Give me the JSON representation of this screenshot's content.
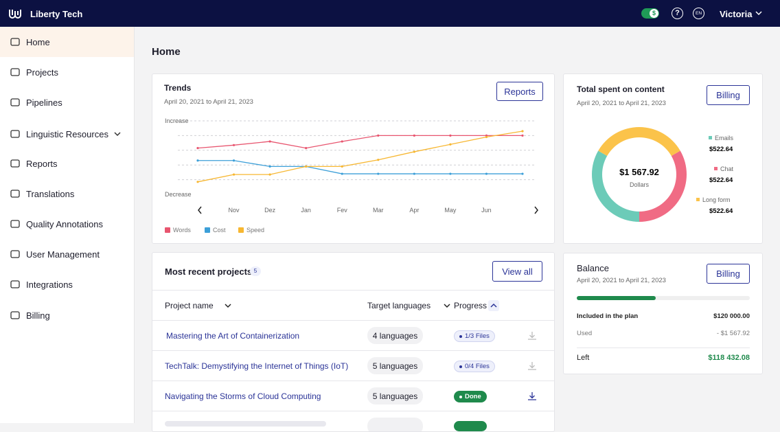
{
  "header": {
    "brand": "Liberty Tech",
    "toggle_icon": "$",
    "language": "EN",
    "user": "Victoria"
  },
  "sidebar": {
    "items": [
      "Home",
      "Projects",
      "Pipelines",
      "Linguistic Resources",
      "Reports",
      "Translations",
      "Quality Annotations",
      "User Management",
      "Integrations",
      "Billing"
    ]
  },
  "page_title": "Home",
  "trends": {
    "title": "Trends",
    "subtitle": "April 20, 2021 to April 21, 2023",
    "button": "Reports",
    "chart_data": {
      "type": "line",
      "categories": [
        null,
        "Nov",
        "Dez",
        "Jan",
        "Fev",
        "Mar",
        "Apr",
        "May",
        "Jun",
        null
      ],
      "series": [
        {
          "name": "Words",
          "color": "#e8556f",
          "values": [
            63,
            67,
            72,
            63,
            72,
            80,
            80,
            80,
            80,
            80
          ]
        },
        {
          "name": "Cost",
          "color": "#3c9fd8",
          "values": [
            46,
            46,
            38,
            38,
            28,
            28,
            28,
            28,
            28,
            28
          ]
        },
        {
          "name": "Speed",
          "color": "#f7b731",
          "values": [
            17,
            27,
            27,
            38,
            38,
            47,
            58,
            68,
            78,
            86
          ]
        }
      ],
      "ylim": [
        0,
        100
      ],
      "yticks": [
        {
          "value": 100,
          "label": "Increase"
        },
        {
          "value": 0,
          "label": "Decrease"
        }
      ],
      "ygrid": [
        100,
        80,
        60,
        40,
        20
      ]
    }
  },
  "total_spent": {
    "title": "Total spent on content",
    "subtitle": "April 20, 2021 to April 21, 2023",
    "button": "Billing",
    "chart_data": {
      "type": "donut",
      "center_value": "$1 567.92",
      "center_label": "Dollars",
      "categories": [
        "Emails",
        "Chat",
        "Long form"
      ],
      "values": [
        522.64,
        522.64,
        522.64
      ],
      "value_labels": [
        "$522.64",
        "$522.64",
        "$522.64"
      ],
      "colors": [
        "#6ccbb8",
        "#f06b84",
        "#fbc34a"
      ]
    }
  },
  "recent_projects": {
    "title": "Most recent projects",
    "count": 5,
    "button": "View all",
    "columns": [
      "Project name",
      "Target languages",
      "Progress"
    ],
    "rows": [
      {
        "name": "Mastering the Art of Containerization",
        "languages": "4 languages",
        "progress": "1/3 Files"
      },
      {
        "name": "TechTalk: Demystifying the Internet of Things (IoT)",
        "languages": "5 languages",
        "progress": "0/4 Files"
      },
      {
        "name": "Navigating the Storms of Cloud Computing",
        "languages": "5 languages",
        "progress": "Done"
      }
    ]
  },
  "balance": {
    "title": "Balance",
    "subtitle": "April 20, 2021 to April 21, 2023",
    "button": "Billing",
    "rows": [
      [
        "Included in the plan",
        "$120 000.00"
      ],
      [
        "Used",
        "- $1 567.92"
      ],
      [
        "Left",
        "$118 432.08"
      ]
    ]
  }
}
